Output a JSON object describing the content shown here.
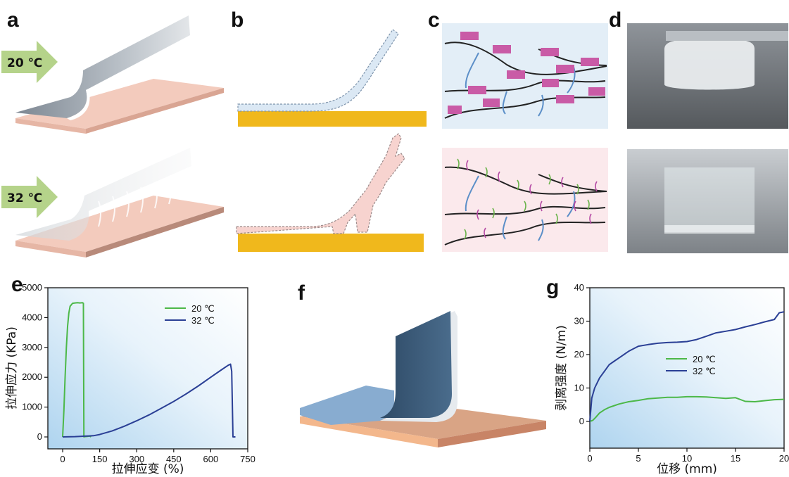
{
  "labels": {
    "a": "a",
    "b": "b",
    "c": "c",
    "d": "d",
    "e": "e",
    "f": "f",
    "g": "g"
  },
  "panel_a": {
    "arrow_top": "20 ℃",
    "arrow_bottom": "32 ℃"
  },
  "colors": {
    "arrow_green": "#b5d38a",
    "substrate_pink": "#f2c7b8",
    "gold": "#f0b81c",
    "line_green": "#4cb848",
    "line_blue": "#2a3f95",
    "panel_blue": "#e6f0f8",
    "panel_pink": "#fbe9ec"
  },
  "chart_data": [
    {
      "type": "line",
      "panel": "e",
      "xlabel": "拉伸应变 (%)",
      "ylabel": "拉伸应力 (KPa)",
      "xlim": [
        -60,
        750
      ],
      "ylim": [
        -400,
        5000
      ],
      "xticks": [
        0,
        150,
        300,
        450,
        600,
        750
      ],
      "yticks": [
        0,
        1000,
        2000,
        3000,
        4000,
        5000
      ],
      "legend_position": "top-right",
      "series": [
        {
          "name": "20 ℃",
          "color": "#4cb848",
          "x": [
            0,
            5,
            10,
            15,
            20,
            25,
            30,
            40,
            50,
            60,
            70,
            80,
            84,
            85,
            86,
            90,
            100,
            110,
            115
          ],
          "y": [
            0,
            900,
            2000,
            3000,
            3700,
            4150,
            4380,
            4480,
            4490,
            4500,
            4490,
            4500,
            4480,
            2500,
            0,
            10,
            20,
            30,
            0
          ]
        },
        {
          "name": "32 ℃",
          "color": "#2a3f95",
          "x": [
            0,
            50,
            100,
            125,
            150,
            200,
            250,
            300,
            350,
            400,
            450,
            500,
            550,
            600,
            640,
            670,
            680,
            685,
            690,
            695,
            700
          ],
          "y": [
            0,
            10,
            30,
            40,
            80,
            200,
            360,
            540,
            740,
            960,
            1190,
            1440,
            1710,
            2000,
            2230,
            2400,
            2440,
            2200,
            0,
            0,
            0
          ]
        }
      ]
    },
    {
      "type": "line",
      "panel": "g",
      "xlabel": "位移 (mm)",
      "ylabel": "剥离强度 (N/m)",
      "xlim": [
        0,
        20
      ],
      "ylim": [
        -8,
        40
      ],
      "xticks": [
        0,
        5,
        10,
        15,
        20
      ],
      "yticks": [
        0,
        10,
        20,
        30,
        40
      ],
      "legend_position": "center-right",
      "series": [
        {
          "name": "20 ℃",
          "color": "#4cb848",
          "x": [
            0,
            0.3,
            0.6,
            1,
            1.5,
            2,
            3,
            4,
            5,
            6,
            7,
            8,
            9,
            10,
            11,
            12,
            13,
            14,
            15,
            16,
            17,
            18,
            19,
            20
          ],
          "y": [
            0,
            0.3,
            1.2,
            2.5,
            3.5,
            4.2,
            5.2,
            5.9,
            6.3,
            6.8,
            7.0,
            7.2,
            7.2,
            7.4,
            7.4,
            7.3,
            7.1,
            6.9,
            7.1,
            6.0,
            5.9,
            6.2,
            6.5,
            6.6
          ]
        },
        {
          "name": "32 ℃",
          "color": "#2a3f95",
          "x": [
            0,
            0.2,
            0.5,
            1,
            1.5,
            2,
            2.5,
            3,
            4,
            5,
            6,
            7,
            8,
            9,
            10,
            11,
            12,
            13,
            14,
            15,
            16,
            17,
            18,
            19,
            19.5,
            20
          ],
          "y": [
            0,
            7,
            10,
            13,
            15,
            17,
            18,
            19,
            21,
            22.5,
            23,
            23.4,
            23.6,
            23.7,
            23.9,
            24.5,
            25.5,
            26.5,
            27,
            27.5,
            28.3,
            29,
            29.8,
            30.5,
            32.5,
            32.8
          ]
        }
      ]
    }
  ]
}
